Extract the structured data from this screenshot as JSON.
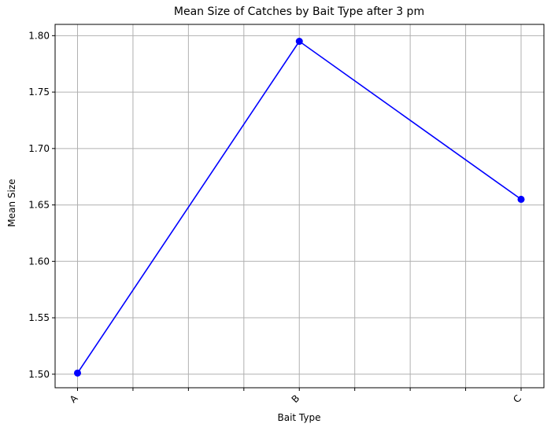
{
  "chart_data": {
    "type": "line",
    "title": "Mean Size of Catches by Bait Type after 3 pm",
    "xlabel": "Bait Type",
    "ylabel": "Mean Size",
    "categories": [
      "A",
      "B",
      "C"
    ],
    "series": [
      {
        "values": [
          1.501,
          1.795,
          1.655
        ],
        "color": "#0000ff",
        "marker": "circle"
      }
    ],
    "x_minor_divisions": 4,
    "ylim": [
      1.488,
      1.81
    ],
    "yticks": [
      1.5,
      1.55,
      1.6,
      1.65,
      1.7,
      1.75,
      1.8
    ],
    "ytick_labels": [
      "1.50",
      "1.55",
      "1.60",
      "1.65",
      "1.70",
      "1.75",
      "1.80"
    ],
    "xtick_rotation": -45,
    "grid": true,
    "grid_color": "#b0b0b0",
    "legend": "none"
  }
}
